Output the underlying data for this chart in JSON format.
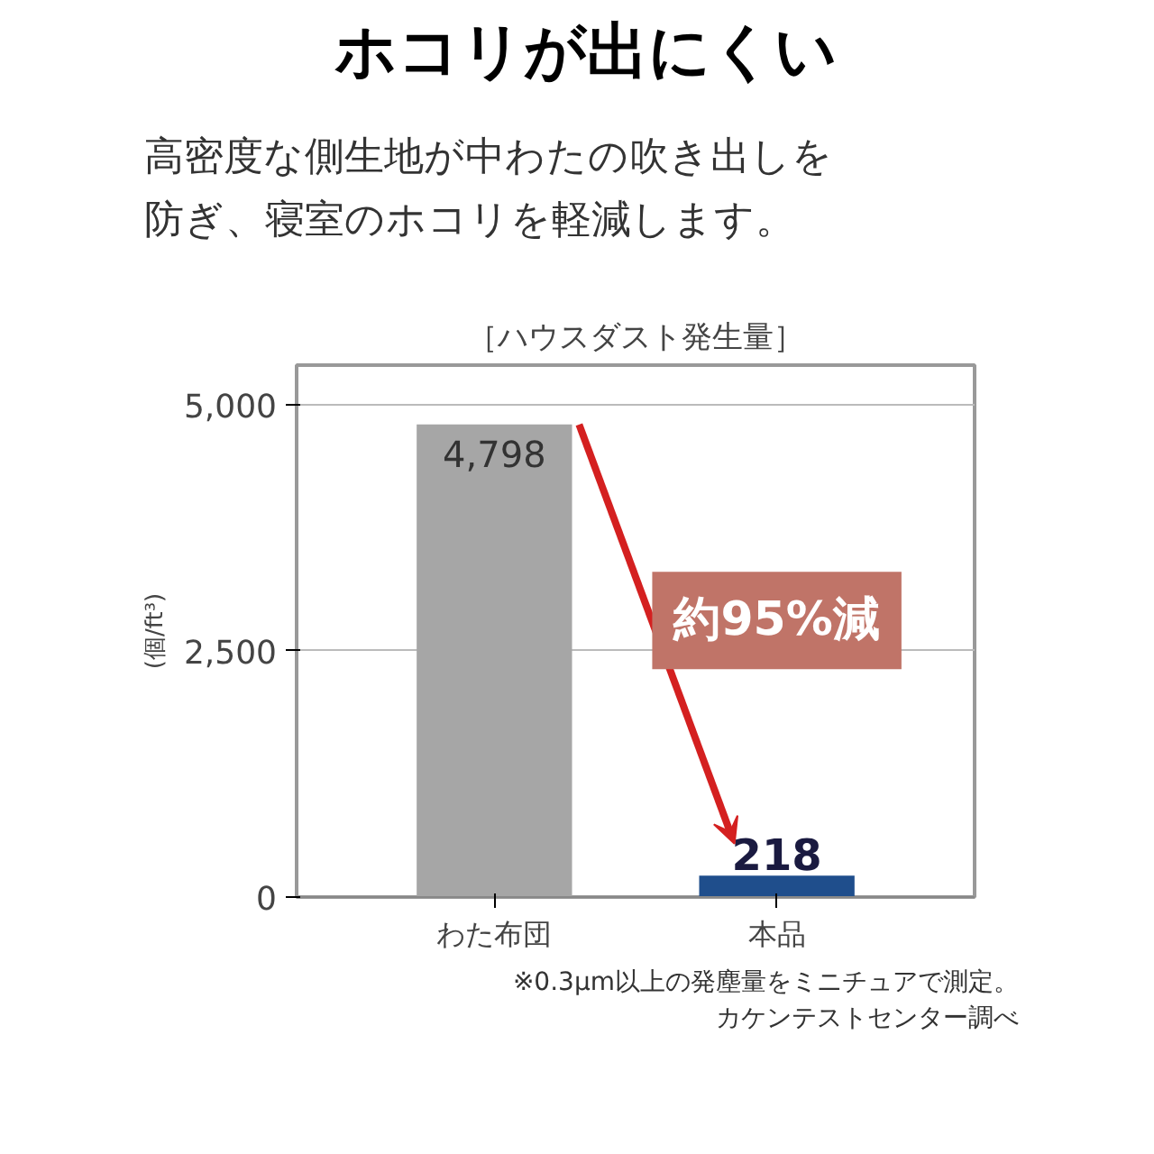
{
  "chart_data": {
    "type": "bar",
    "title": "ホコリが出にくい",
    "subtitle": "高密度な側生地が中わたの吹き出しを防ぎ、寝室のホコリを軽減します。",
    "legend_title": "［ハウスダスト発生量］",
    "ylabel": "(個/ft³)",
    "categories": [
      "わた布団",
      "本品"
    ],
    "values": [
      4798,
      218
    ],
    "colors": [
      "#a6a6a6",
      "#1f4e8c"
    ],
    "value_labels": [
      "4,798",
      "218"
    ],
    "ylim": [
      0,
      5400
    ],
    "yticks": [
      {
        "value": 0,
        "label": "0"
      },
      {
        "value": 2500,
        "label": "2,500"
      },
      {
        "value": 5000,
        "label": "5,000"
      }
    ],
    "grid": "y",
    "annotations": [
      "約95%減",
      "※0.3µm以上の発塵量をミニチュアで測定。",
      "カケンテストセンター調べ"
    ]
  }
}
